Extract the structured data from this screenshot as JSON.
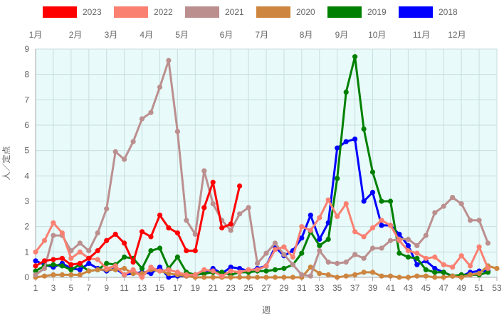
{
  "chart_data": {
    "type": "line",
    "xlabel": "週",
    "ylabel": "人／定点",
    "ylim": [
      0,
      9
    ],
    "xlim": [
      1,
      53
    ],
    "y_ticks": [
      0,
      1,
      2,
      3,
      4,
      5,
      6,
      7,
      8,
      9
    ],
    "x_ticks": [
      1,
      3,
      5,
      7,
      9,
      11,
      13,
      15,
      17,
      19,
      21,
      23,
      25,
      27,
      29,
      31,
      33,
      35,
      37,
      39,
      41,
      43,
      45,
      47,
      49,
      51,
      53
    ],
    "grid": true,
    "plot_background": "#e8fafa",
    "legend_position": "top",
    "months": [
      {
        "label": "1月",
        "week": 1
      },
      {
        "label": "2月",
        "week": 5.5
      },
      {
        "label": "3月",
        "week": 9.5
      },
      {
        "label": "4月",
        "week": 13.5
      },
      {
        "label": "5月",
        "week": 17.5
      },
      {
        "label": "6月",
        "week": 22.5
      },
      {
        "label": "7月",
        "week": 26.5
      },
      {
        "label": "8月",
        "week": 31.5
      },
      {
        "label": "9月",
        "week": 35.5
      },
      {
        "label": "10月",
        "week": 39.5
      },
      {
        "label": "11月",
        "week": 44.5
      },
      {
        "label": "12月",
        "week": 48.5
      }
    ],
    "series": [
      {
        "name": "2023",
        "color": "#ff0000",
        "values": [
          0.45,
          0.65,
          0.7,
          0.75,
          0.5,
          0.55,
          0.75,
          1.05,
          1.45,
          1.7,
          1.35,
          0.6,
          1.8,
          1.6,
          2.45,
          1.95,
          1.75,
          1.05,
          1.05,
          2.75,
          3.75,
          1.95,
          2.1,
          3.6
        ]
      },
      {
        "name": "2022",
        "color": "#fa8072",
        "values": [
          1.0,
          1.45,
          2.15,
          1.75,
          0.75,
          1.0,
          0.75,
          0.7,
          0.35,
          0.45,
          0.1,
          0.3,
          0.0,
          0.4,
          0.25,
          0.3,
          0.2,
          0.1,
          0.1,
          0.3,
          0.25,
          0.05,
          0.25,
          0.2,
          0.3,
          0.3,
          0.45,
          1.1,
          1.2,
          0.8,
          2.0,
          1.85,
          2.35,
          3.05,
          2.4,
          2.9,
          1.8,
          1.6,
          1.95,
          2.25,
          2.05,
          1.45,
          1.05,
          0.95,
          0.75,
          0.8,
          0.5,
          0.4,
          0.85,
          0.45,
          1.2,
          0.35
        ]
      },
      {
        "name": "2021",
        "color": "#bc8f8f",
        "values": [
          0.1,
          0.35,
          1.65,
          1.65,
          1.05,
          1.35,
          1.05,
          1.75,
          2.7,
          4.95,
          4.65,
          5.35,
          6.25,
          6.5,
          7.5,
          8.55,
          5.75,
          2.25,
          1.7,
          4.2,
          2.9,
          2.25,
          1.85,
          2.5,
          2.75,
          0.55,
          0.95,
          1.35,
          0.9,
          0.5,
          0.1,
          0.05,
          1.05,
          0.6,
          0.55,
          0.6,
          0.9,
          0.75,
          1.15,
          1.15,
          1.45,
          1.5,
          1.5,
          1.25,
          1.65,
          2.55,
          2.8,
          3.15,
          2.9,
          2.25,
          2.25,
          1.35
        ]
      },
      {
        "name": "2020",
        "color": "#cd853f",
        "values": [
          0.0,
          0.05,
          0.1,
          0.1,
          0.1,
          0.1,
          0.25,
          0.3,
          0.3,
          0.3,
          0.35,
          0.15,
          0.15,
          0.3,
          0.25,
          0.15,
          0.1,
          0.05,
          0.0,
          0.0,
          0.0,
          0.0,
          0.0,
          0.0,
          0.0,
          0.0,
          0.0,
          0.0,
          0.0,
          0.0,
          0.0,
          0.4,
          0.15,
          0.1,
          0.0,
          0.05,
          0.1,
          0.2,
          0.2,
          0.05,
          0.05,
          0.0,
          0.0,
          0.05,
          0.05,
          0.0,
          0.0,
          0.05,
          0.0,
          0.1,
          0.15,
          0.45,
          0.35
        ]
      },
      {
        "name": "2019",
        "color": "#008000",
        "values": [
          0.25,
          0.45,
          0.5,
          0.45,
          0.3,
          0.5,
          0.25,
          0.3,
          0.55,
          0.5,
          0.8,
          0.75,
          0.35,
          1.05,
          1.15,
          0.35,
          0.8,
          0.2,
          0.1,
          0.15,
          0.2,
          0.2,
          0.1,
          0.2,
          0.2,
          0.25,
          0.25,
          0.3,
          0.35,
          0.5,
          0.95,
          1.8,
          1.25,
          1.5,
          3.9,
          7.3,
          8.7,
          5.85,
          4.15,
          3.0,
          3.0,
          0.95,
          0.8,
          0.75,
          0.3,
          0.2,
          0.2,
          0.05,
          0.1,
          0.1,
          0.1,
          0.2
        ]
      },
      {
        "name": "2018",
        "color": "#0000ff",
        "values": [
          0.65,
          0.5,
          0.4,
          0.55,
          0.35,
          0.3,
          0.55,
          0.35,
          0.25,
          0.35,
          0.1,
          0.15,
          0.2,
          0.15,
          0.4,
          0.0,
          0.05,
          0.05,
          0.1,
          0.15,
          0.35,
          0.15,
          0.4,
          0.35,
          0.25,
          0.35,
          0.45,
          1.2,
          0.85,
          1.05,
          1.55,
          2.45,
          1.5,
          2.15,
          5.1,
          5.35,
          5.45,
          3.0,
          3.35,
          2.05,
          2.05,
          1.7,
          1.25,
          0.5,
          0.65,
          0.35,
          0.2,
          0.05,
          0.05,
          0.2,
          0.25,
          0.25
        ]
      }
    ]
  }
}
